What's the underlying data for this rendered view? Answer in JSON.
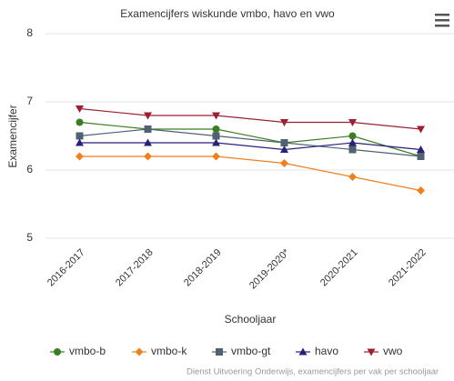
{
  "chart_data": {
    "type": "line",
    "title": "Examencijfers wiskunde vmbo, havo en vwo",
    "x_label": "Schooljaar",
    "y_label": "Examencijfer",
    "categories": [
      "2016-2017",
      "2017-2018",
      "2018-2019",
      "2019-2020*",
      "2020-2021",
      "2021-2022"
    ],
    "series": [
      {
        "name": "vmbo-b",
        "color": "#3b7d23",
        "marker": "circle",
        "values": [
          6.7,
          6.6,
          6.6,
          6.4,
          6.5,
          6.2
        ]
      },
      {
        "name": "vmbo-k",
        "color": "#f07f1c",
        "marker": "diamond",
        "values": [
          6.2,
          6.2,
          6.2,
          6.1,
          5.9,
          5.7
        ]
      },
      {
        "name": "vmbo-gt",
        "color": "#4f6272",
        "marker": "square",
        "values": [
          6.5,
          6.6,
          6.5,
          6.4,
          6.3,
          6.2
        ]
      },
      {
        "name": "havo",
        "color": "#2a1f7a",
        "marker": "triangle",
        "values": [
          6.4,
          6.4,
          6.4,
          6.3,
          6.4,
          6.3
        ]
      },
      {
        "name": "vwo",
        "color": "#9c1f33",
        "marker": "triangle-down",
        "values": [
          6.9,
          6.8,
          6.8,
          6.7,
          6.7,
          6.6
        ]
      }
    ],
    "ylim": [
      5,
      8
    ],
    "yticks": [
      5,
      6,
      7,
      8
    ],
    "grid": true,
    "legend": "bottom",
    "credit": "Dienst Uitvoering Onderwijs, examencijfers per vak per schooljaar"
  }
}
